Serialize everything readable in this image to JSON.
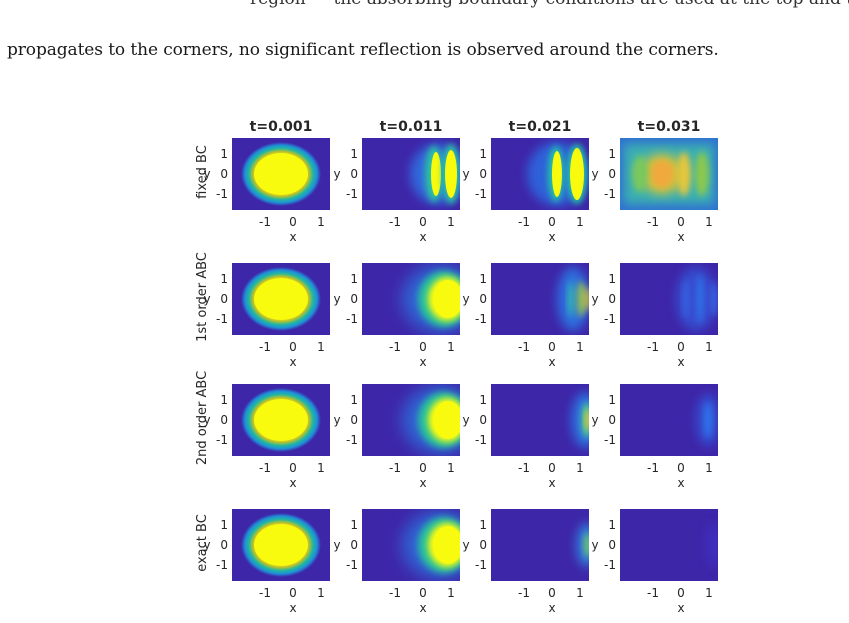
{
  "paper": {
    "top_cut_text": "region — the absorbing boundary conditions are used at the top and the",
    "body_text": "propagates to the corners, no significant reflection is observed around the corners."
  },
  "chart_data": {
    "type": "heatmap",
    "layout": "4x4 grid of subplots",
    "columns": [
      "t=0.001",
      "t=0.011",
      "t=0.021",
      "t=0.031"
    ],
    "rows": [
      "fixed BC",
      "1st order ABC",
      "2nd order ABC",
      "exact BC"
    ],
    "xlabel": "x",
    "ylabel": "y",
    "xticks": [
      "-1",
      "0",
      "1"
    ],
    "yticks": [
      "1",
      "0",
      "-1"
    ],
    "xlim": [
      -1.5,
      1.5
    ],
    "ylim": [
      -1.5,
      1.5
    ],
    "colormap": "parula",
    "background_color": "#3e26a8",
    "peak_color": "#f9fb0e"
  }
}
